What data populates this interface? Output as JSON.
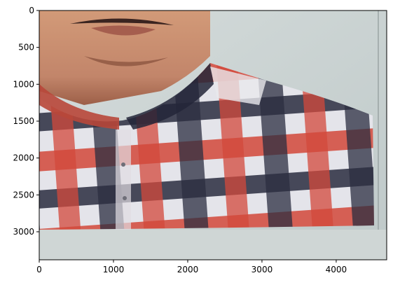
{
  "figure": {
    "image_content": "photo"
  },
  "chart_data": {
    "type": "image",
    "x_ticks": [
      {
        "value": 0,
        "label": "0"
      },
      {
        "value": 1000,
        "label": "1000"
      },
      {
        "value": 2000,
        "label": "2000"
      },
      {
        "value": 3000,
        "label": "3000"
      },
      {
        "value": 4000,
        "label": "4000"
      }
    ],
    "y_ticks": [
      {
        "value": 0,
        "label": "0"
      },
      {
        "value": 500,
        "label": "500"
      },
      {
        "value": 1000,
        "label": "1000"
      },
      {
        "value": 1500,
        "label": "1500"
      },
      {
        "value": 2000,
        "label": "2000"
      },
      {
        "value": 2500,
        "label": "2500"
      },
      {
        "value": 3000,
        "label": "3000"
      }
    ],
    "xlim": [
      0,
      4680
    ],
    "ylim": [
      3380,
      0
    ],
    "grid": false,
    "colors": {
      "background": "#c9d3d2",
      "skin": "#c98a6a",
      "red": "#d44a36",
      "navy": "#262a3c",
      "white": "#e6e8ea"
    }
  }
}
